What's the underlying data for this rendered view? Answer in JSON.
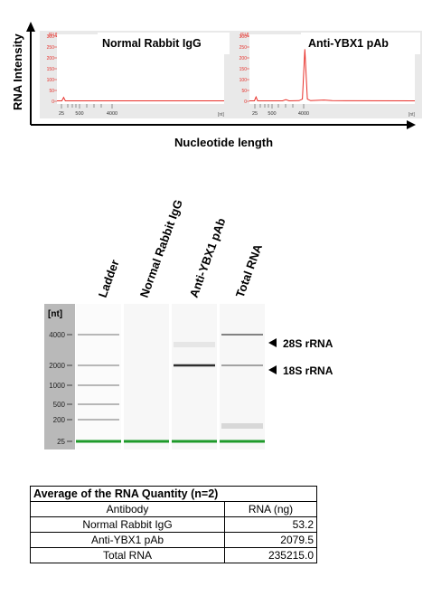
{
  "chart_data": [
    {
      "type": "line",
      "title": "Normal Rabbit IgG",
      "ylabel": "RNA Intensity",
      "xlabel": "Nucleotide length",
      "y_unit": "[FU]",
      "x_unit": "[nt]",
      "y_ticks": [
        0,
        50,
        100,
        150,
        200,
        250,
        300
      ],
      "ylim": [
        0,
        300
      ],
      "x_tick_labels": [
        "25",
        "500",
        "4000"
      ],
      "series": [
        {
          "points": [
            [
              0.0,
              2
            ],
            [
              0.03,
              2
            ],
            [
              0.04,
              18
            ],
            [
              0.05,
              2
            ],
            [
              0.3,
              2
            ],
            [
              0.6,
              2
            ],
            [
              1.0,
              2
            ]
          ]
        }
      ],
      "color": "#e8302a"
    },
    {
      "type": "line",
      "title": "Anti-YBX1  pAb",
      "y_unit": "[FU]",
      "x_unit": "[nt]",
      "y_ticks": [
        0,
        50,
        100,
        150,
        200,
        250,
        300
      ],
      "ylim": [
        0,
        300
      ],
      "x_tick_labels": [
        "25",
        "500",
        "4000"
      ],
      "series": [
        {
          "points": [
            [
              0.0,
              2
            ],
            [
              0.03,
              2
            ],
            [
              0.04,
              20
            ],
            [
              0.05,
              2
            ],
            [
              0.2,
              2
            ],
            [
              0.22,
              8
            ],
            [
              0.24,
              2
            ],
            [
              0.3,
              3
            ],
            [
              0.32,
              10
            ],
            [
              0.335,
              240
            ],
            [
              0.35,
              10
            ],
            [
              0.37,
              3
            ],
            [
              0.45,
              6
            ],
            [
              0.5,
              3
            ],
            [
              1.0,
              2
            ]
          ]
        }
      ],
      "color": "#e8302a"
    },
    {
      "type": "gel",
      "lane_labels": [
        "Ladder",
        "Normal Rabbit IgG",
        "Anti-YBX1  pAb",
        "Total RNA"
      ],
      "size_unit": "[nt]",
      "size_markers": [
        "4000",
        "2000",
        "1000",
        "500",
        "200",
        "25"
      ],
      "annotations": [
        "28S rRNA",
        "18S rRNA"
      ],
      "bands": [
        {
          "lane": 0,
          "sizes": [
            "4000",
            "2000",
            "1000",
            "500",
            "200"
          ],
          "intensity": 0.25
        },
        {
          "lane": 2,
          "sizes": [
            "2000"
          ],
          "intensity": 0.9
        },
        {
          "lane": 3,
          "sizes": [
            "4000"
          ],
          "intensity": 0.5
        },
        {
          "lane": 3,
          "sizes": [
            "2000"
          ],
          "intensity": 0.35
        }
      ],
      "marker_color": "#1e9a2a"
    }
  ],
  "table": {
    "caption": "Average of the RNA Quantity (n=2)",
    "headers": [
      "Antibody",
      "RNA (ng)"
    ],
    "rows": [
      {
        "name": "Normal Rabbit IgG",
        "value": "53.2"
      },
      {
        "name": "Anti-YBX1 pAb",
        "value": "2079.5"
      },
      {
        "name": "Total RNA",
        "value": "235215.0"
      }
    ]
  }
}
